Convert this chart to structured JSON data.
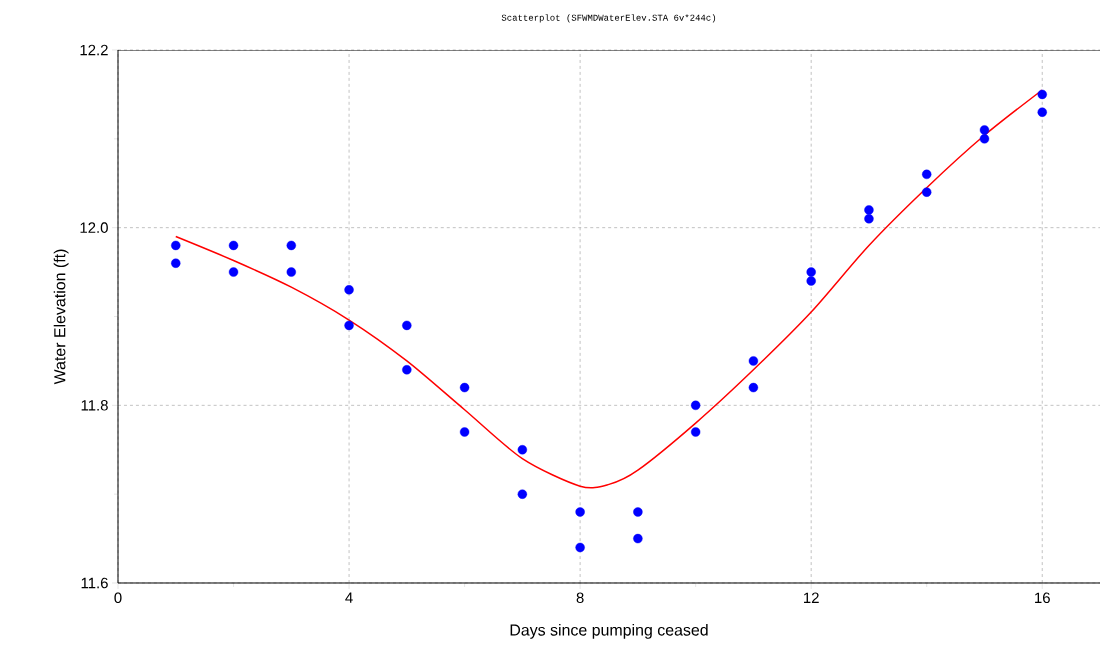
{
  "chart_data": {
    "type": "scatter",
    "title": "Scatterplot (SFWMDWaterElev.STA 6v*244c)",
    "xlabel": "Days since pumping ceased",
    "ylabel": "Water Elevation (ft)",
    "xlim": [
      0,
      17
    ],
    "ylim": [
      11.6,
      12.2
    ],
    "xticks": [
      0,
      {
        "value": 2,
        "label": null
      },
      4,
      {
        "value": 6,
        "label": null
      },
      8,
      {
        "value": 10,
        "label": null
      },
      12,
      {
        "value": 14,
        "label": null
      },
      16
    ],
    "yticks": [
      {
        "value": 11.6,
        "label": "11.6"
      },
      {
        "value": 11.7,
        "label": null
      },
      {
        "value": 11.8,
        "label": "11.8"
      },
      {
        "value": 11.9,
        "label": null
      },
      {
        "value": 12.0,
        "label": "12.0"
      },
      {
        "value": 12.1,
        "label": null
      },
      {
        "value": 12.2,
        "label": "12.2"
      }
    ],
    "grid": true,
    "marker": "circle",
    "series": [
      {
        "color": "#0000ff",
        "x": [
          1,
          1,
          2,
          2,
          3,
          3,
          4,
          4,
          5,
          5,
          6,
          6,
          7,
          7,
          8,
          8,
          9,
          9,
          10,
          10,
          11,
          11,
          12,
          12,
          13,
          13,
          14,
          14,
          15,
          15,
          16,
          16
        ],
        "values": [
          11.98,
          11.96,
          11.98,
          11.95,
          11.98,
          11.95,
          11.93,
          11.89,
          11.89,
          11.84,
          11.82,
          11.77,
          11.75,
          11.7,
          11.68,
          11.64,
          11.68,
          11.65,
          11.8,
          11.77,
          11.85,
          11.82,
          11.95,
          11.94,
          12.02,
          12.01,
          12.06,
          12.04,
          12.11,
          12.1,
          12.15,
          12.13
        ]
      },
      {
        "type": "line",
        "color": "#ff0000",
        "marker": "none",
        "x": [
          1,
          2,
          3,
          4,
          5,
          6,
          7,
          8,
          8.5,
          9,
          10,
          11,
          12,
          13,
          14,
          15,
          16
        ],
        "values": [
          11.99,
          11.963,
          11.933,
          11.896,
          11.85,
          11.795,
          11.74,
          11.709,
          11.711,
          11.727,
          11.78,
          11.84,
          11.905,
          11.98,
          12.045,
          12.104,
          12.155
        ]
      }
    ]
  }
}
